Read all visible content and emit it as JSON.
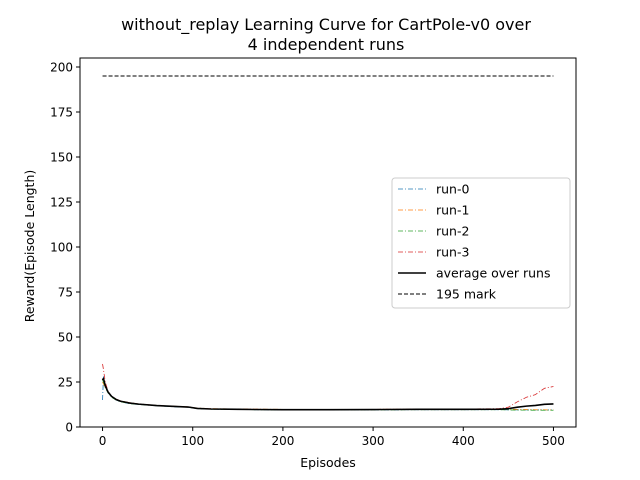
{
  "chart_data": {
    "type": "line",
    "title_line1": "without_replay Learning Curve for CartPole-v0 over",
    "title_line2": "4 independent runs",
    "xlabel": "Episodes",
    "ylabel": "Reward(Episode Length)",
    "xlim": [
      -25,
      525
    ],
    "ylim": [
      0,
      205
    ],
    "xticks": [
      0,
      100,
      200,
      300,
      400,
      500
    ],
    "yticks": [
      0,
      25,
      50,
      75,
      100,
      125,
      150,
      175,
      200
    ],
    "grid": false,
    "legend_position": "center-right",
    "series": [
      {
        "name": "run-0",
        "color": "#1f77b4",
        "style": "dashdot",
        "points": [
          [
            0,
            15
          ],
          [
            1,
            28
          ],
          [
            3,
            22
          ],
          [
            6,
            19
          ],
          [
            10,
            17
          ],
          [
            15,
            15
          ],
          [
            20,
            14
          ],
          [
            30,
            13
          ],
          [
            40,
            12.5
          ],
          [
            60,
            11.8
          ],
          [
            80,
            11.2
          ],
          [
            95,
            11
          ],
          [
            105,
            10.2
          ],
          [
            120,
            9.9
          ],
          [
            150,
            9.7
          ],
          [
            200,
            9.5
          ],
          [
            250,
            9.5
          ],
          [
            300,
            9.5
          ],
          [
            350,
            9.6
          ],
          [
            400,
            9.6
          ],
          [
            440,
            9.6
          ],
          [
            460,
            9.5
          ],
          [
            480,
            9.5
          ],
          [
            500,
            9.5
          ]
        ]
      },
      {
        "name": "run-1",
        "color": "#ff7f0e",
        "style": "dashdot",
        "points": [
          [
            0,
            25
          ],
          [
            1,
            24
          ],
          [
            3,
            22
          ],
          [
            6,
            19.5
          ],
          [
            10,
            17
          ],
          [
            15,
            15.5
          ],
          [
            20,
            14.5
          ],
          [
            30,
            13.5
          ],
          [
            40,
            12.8
          ],
          [
            60,
            12
          ],
          [
            80,
            11.5
          ],
          [
            95,
            11.2
          ],
          [
            105,
            10.5
          ],
          [
            120,
            10.2
          ],
          [
            150,
            10
          ],
          [
            200,
            9.8
          ],
          [
            250,
            9.8
          ],
          [
            300,
            9.8
          ],
          [
            350,
            9.9
          ],
          [
            400,
            10
          ],
          [
            440,
            10
          ],
          [
            460,
            9.8
          ],
          [
            480,
            9.6
          ],
          [
            500,
            9.5
          ]
        ]
      },
      {
        "name": "run-2",
        "color": "#2ca02c",
        "style": "dashdot",
        "points": [
          [
            0,
            26
          ],
          [
            1,
            25
          ],
          [
            3,
            22
          ],
          [
            6,
            19
          ],
          [
            10,
            16.5
          ],
          [
            15,
            15
          ],
          [
            20,
            14
          ],
          [
            30,
            13
          ],
          [
            40,
            12.5
          ],
          [
            60,
            11.8
          ],
          [
            80,
            11.3
          ],
          [
            95,
            11
          ],
          [
            105,
            10.2
          ],
          [
            120,
            9.9
          ],
          [
            150,
            9.7
          ],
          [
            200,
            9.5
          ],
          [
            250,
            9.5
          ],
          [
            300,
            9.5
          ],
          [
            350,
            9.6
          ],
          [
            400,
            9.6
          ],
          [
            440,
            9.6
          ],
          [
            460,
            9.4
          ],
          [
            480,
            9.3
          ],
          [
            500,
            9.3
          ]
        ]
      },
      {
        "name": "run-3",
        "color": "#d62728",
        "style": "dashdot",
        "points": [
          [
            0,
            35
          ],
          [
            1,
            32
          ],
          [
            3,
            25
          ],
          [
            6,
            20
          ],
          [
            10,
            17
          ],
          [
            15,
            15.5
          ],
          [
            20,
            14.5
          ],
          [
            30,
            13.5
          ],
          [
            40,
            12.8
          ],
          [
            60,
            12
          ],
          [
            80,
            11.5
          ],
          [
            95,
            11.2
          ],
          [
            105,
            10.4
          ],
          [
            120,
            10.1
          ],
          [
            150,
            9.9
          ],
          [
            200,
            9.7
          ],
          [
            250,
            9.7
          ],
          [
            300,
            9.8
          ],
          [
            350,
            9.9
          ],
          [
            400,
            10
          ],
          [
            440,
            10.2
          ],
          [
            450,
            11
          ],
          [
            460,
            14
          ],
          [
            470,
            16.5
          ],
          [
            480,
            18
          ],
          [
            490,
            21.5
          ],
          [
            500,
            22.5
          ]
        ]
      },
      {
        "name": "average over runs",
        "color": "#000000",
        "style": "solid",
        "points": [
          [
            0,
            26
          ],
          [
            1,
            27
          ],
          [
            3,
            23
          ],
          [
            6,
            19.5
          ],
          [
            10,
            17
          ],
          [
            15,
            15.3
          ],
          [
            20,
            14.3
          ],
          [
            30,
            13.3
          ],
          [
            40,
            12.7
          ],
          [
            60,
            11.9
          ],
          [
            80,
            11.4
          ],
          [
            95,
            11.1
          ],
          [
            105,
            10.3
          ],
          [
            120,
            10
          ],
          [
            150,
            9.8
          ],
          [
            200,
            9.6
          ],
          [
            250,
            9.6
          ],
          [
            300,
            9.7
          ],
          [
            350,
            9.8
          ],
          [
            400,
            9.8
          ],
          [
            440,
            9.9
          ],
          [
            450,
            10.2
          ],
          [
            460,
            11
          ],
          [
            470,
            11.6
          ],
          [
            480,
            12
          ],
          [
            490,
            12.6
          ],
          [
            500,
            12.8
          ]
        ]
      },
      {
        "name": "195 mark",
        "color": "#000000",
        "style": "dashed",
        "points": [
          [
            0,
            195
          ],
          [
            500,
            195
          ]
        ]
      }
    ]
  }
}
